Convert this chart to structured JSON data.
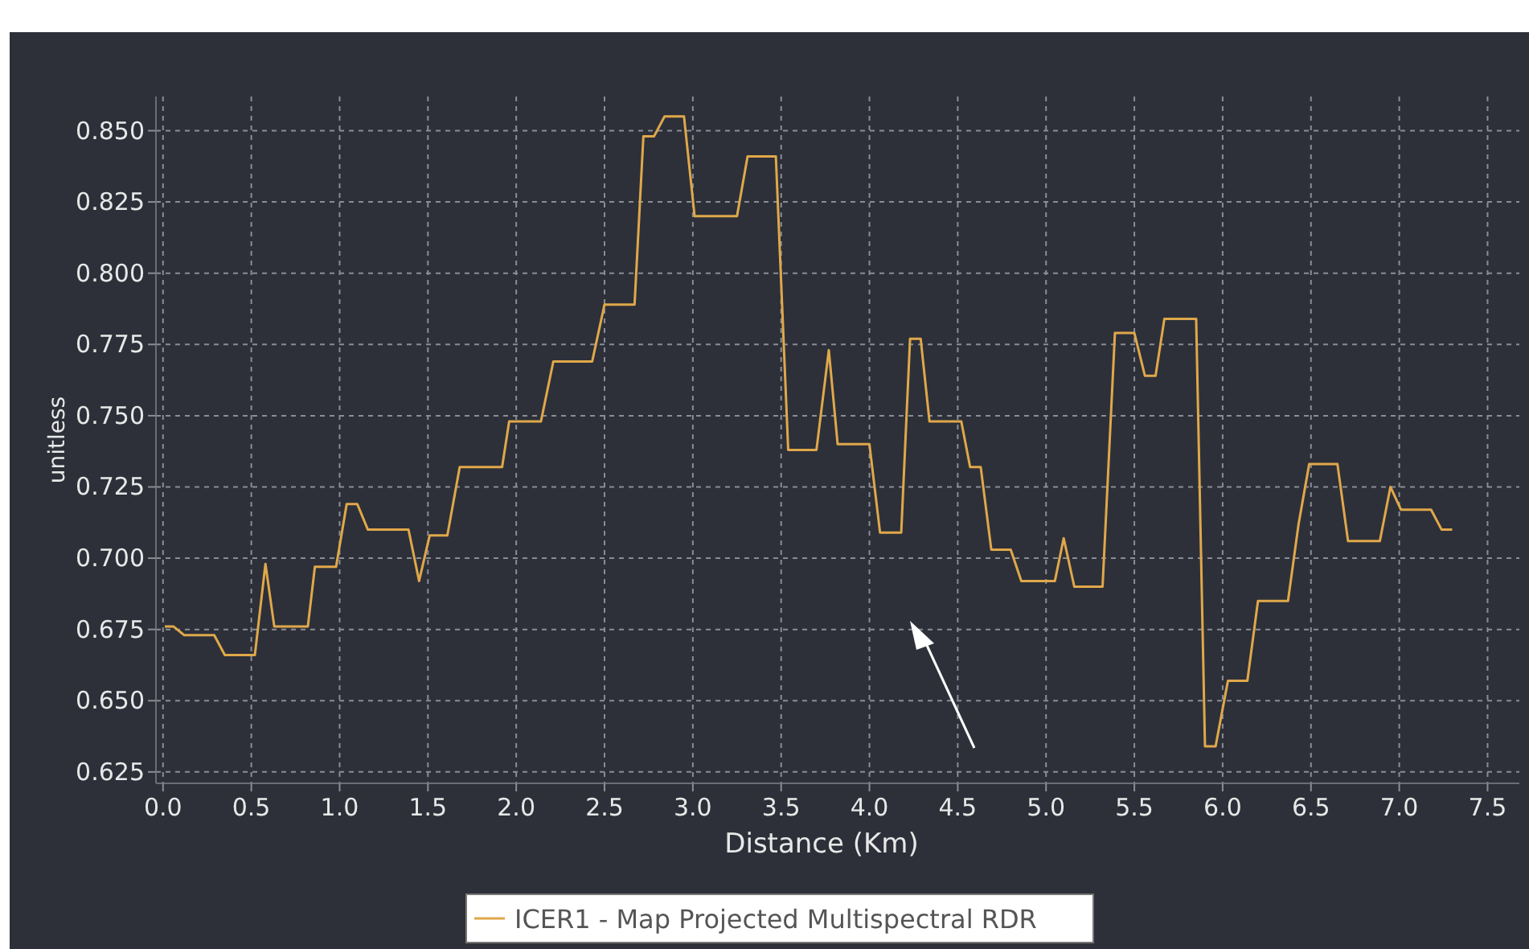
{
  "chart_data": {
    "type": "line",
    "xlabel": "Distance (Km)",
    "ylabel": "unitless",
    "xlim": [
      -0.04,
      7.68
    ],
    "ylim": [
      0.621,
      0.862
    ],
    "xticks": [
      {
        "value": 0,
        "label": "0.0"
      },
      {
        "value": 0.5,
        "label": "0.5"
      },
      {
        "value": 1,
        "label": "1.0"
      },
      {
        "value": 1.5,
        "label": "1.5"
      },
      {
        "value": 2,
        "label": "2.0"
      },
      {
        "value": 2.5,
        "label": "2.5"
      },
      {
        "value": 3,
        "label": "3.0"
      },
      {
        "value": 3.5,
        "label": "3.5"
      },
      {
        "value": 4,
        "label": "4.0"
      },
      {
        "value": 4.5,
        "label": "4.5"
      },
      {
        "value": 5,
        "label": "5.0"
      },
      {
        "value": 5.5,
        "label": "5.5"
      },
      {
        "value": 6,
        "label": "6.0"
      },
      {
        "value": 6.5,
        "label": "6.5"
      },
      {
        "value": 7,
        "label": "7.0"
      },
      {
        "value": 7.5,
        "label": "7.5"
      }
    ],
    "yticks": [
      {
        "value": 0.625,
        "label": "0.625"
      },
      {
        "value": 0.65,
        "label": "0.650"
      },
      {
        "value": 0.675,
        "label": "0.675"
      },
      {
        "value": 0.7,
        "label": "0.700"
      },
      {
        "value": 0.725,
        "label": "0.725"
      },
      {
        "value": 0.75,
        "label": "0.750"
      },
      {
        "value": 0.775,
        "label": "0.775"
      },
      {
        "value": 0.8,
        "label": "0.800"
      },
      {
        "value": 0.825,
        "label": "0.825"
      },
      {
        "value": 0.85,
        "label": "0.850"
      }
    ],
    "grid": true,
    "legend": "bottom",
    "marker": "none",
    "line_style": "solid",
    "series": [
      {
        "name": "ICER1 - Map Projected Multispectral RDR",
        "color": "#e0a84a",
        "x": [
          0.01,
          0.06,
          0.12,
          0.29,
          0.35,
          0.52,
          0.58,
          0.63,
          0.82,
          0.86,
          0.98,
          1.04,
          1.1,
          1.16,
          1.39,
          1.45,
          1.51,
          1.61,
          1.68,
          1.92,
          1.96,
          2.14,
          2.21,
          2.43,
          2.5,
          2.67,
          2.72,
          2.78,
          2.84,
          2.95,
          3.01,
          3.25,
          3.31,
          3.47,
          3.54,
          3.7,
          3.77,
          3.82,
          4.0,
          4.06,
          4.18,
          4.23,
          4.29,
          4.34,
          4.52,
          4.57,
          4.63,
          4.69,
          4.8,
          4.86,
          5.05,
          5.1,
          5.16,
          5.32,
          5.39,
          5.5,
          5.56,
          5.62,
          5.67,
          5.85,
          5.9,
          5.96,
          6.03,
          6.14,
          6.2,
          6.37,
          6.43,
          6.49,
          6.65,
          6.71,
          6.89,
          6.95,
          7.01,
          7.18,
          7.24,
          7.3
        ],
        "values": [
          0.676,
          0.676,
          0.673,
          0.673,
          0.666,
          0.666,
          0.698,
          0.676,
          0.676,
          0.697,
          0.697,
          0.719,
          0.719,
          0.71,
          0.71,
          0.692,
          0.708,
          0.708,
          0.732,
          0.732,
          0.748,
          0.748,
          0.769,
          0.769,
          0.789,
          0.789,
          0.848,
          0.848,
          0.855,
          0.855,
          0.82,
          0.82,
          0.841,
          0.841,
          0.738,
          0.738,
          0.773,
          0.74,
          0.74,
          0.709,
          0.709,
          0.777,
          0.777,
          0.748,
          0.748,
          0.732,
          0.732,
          0.703,
          0.703,
          0.692,
          0.692,
          0.707,
          0.69,
          0.69,
          0.779,
          0.779,
          0.764,
          0.764,
          0.784,
          0.784,
          0.634,
          0.634,
          0.657,
          0.657,
          0.685,
          0.685,
          0.712,
          0.733,
          0.733,
          0.706,
          0.706,
          0.725,
          0.717,
          0.717,
          0.71,
          0.71
        ]
      }
    ]
  }
}
